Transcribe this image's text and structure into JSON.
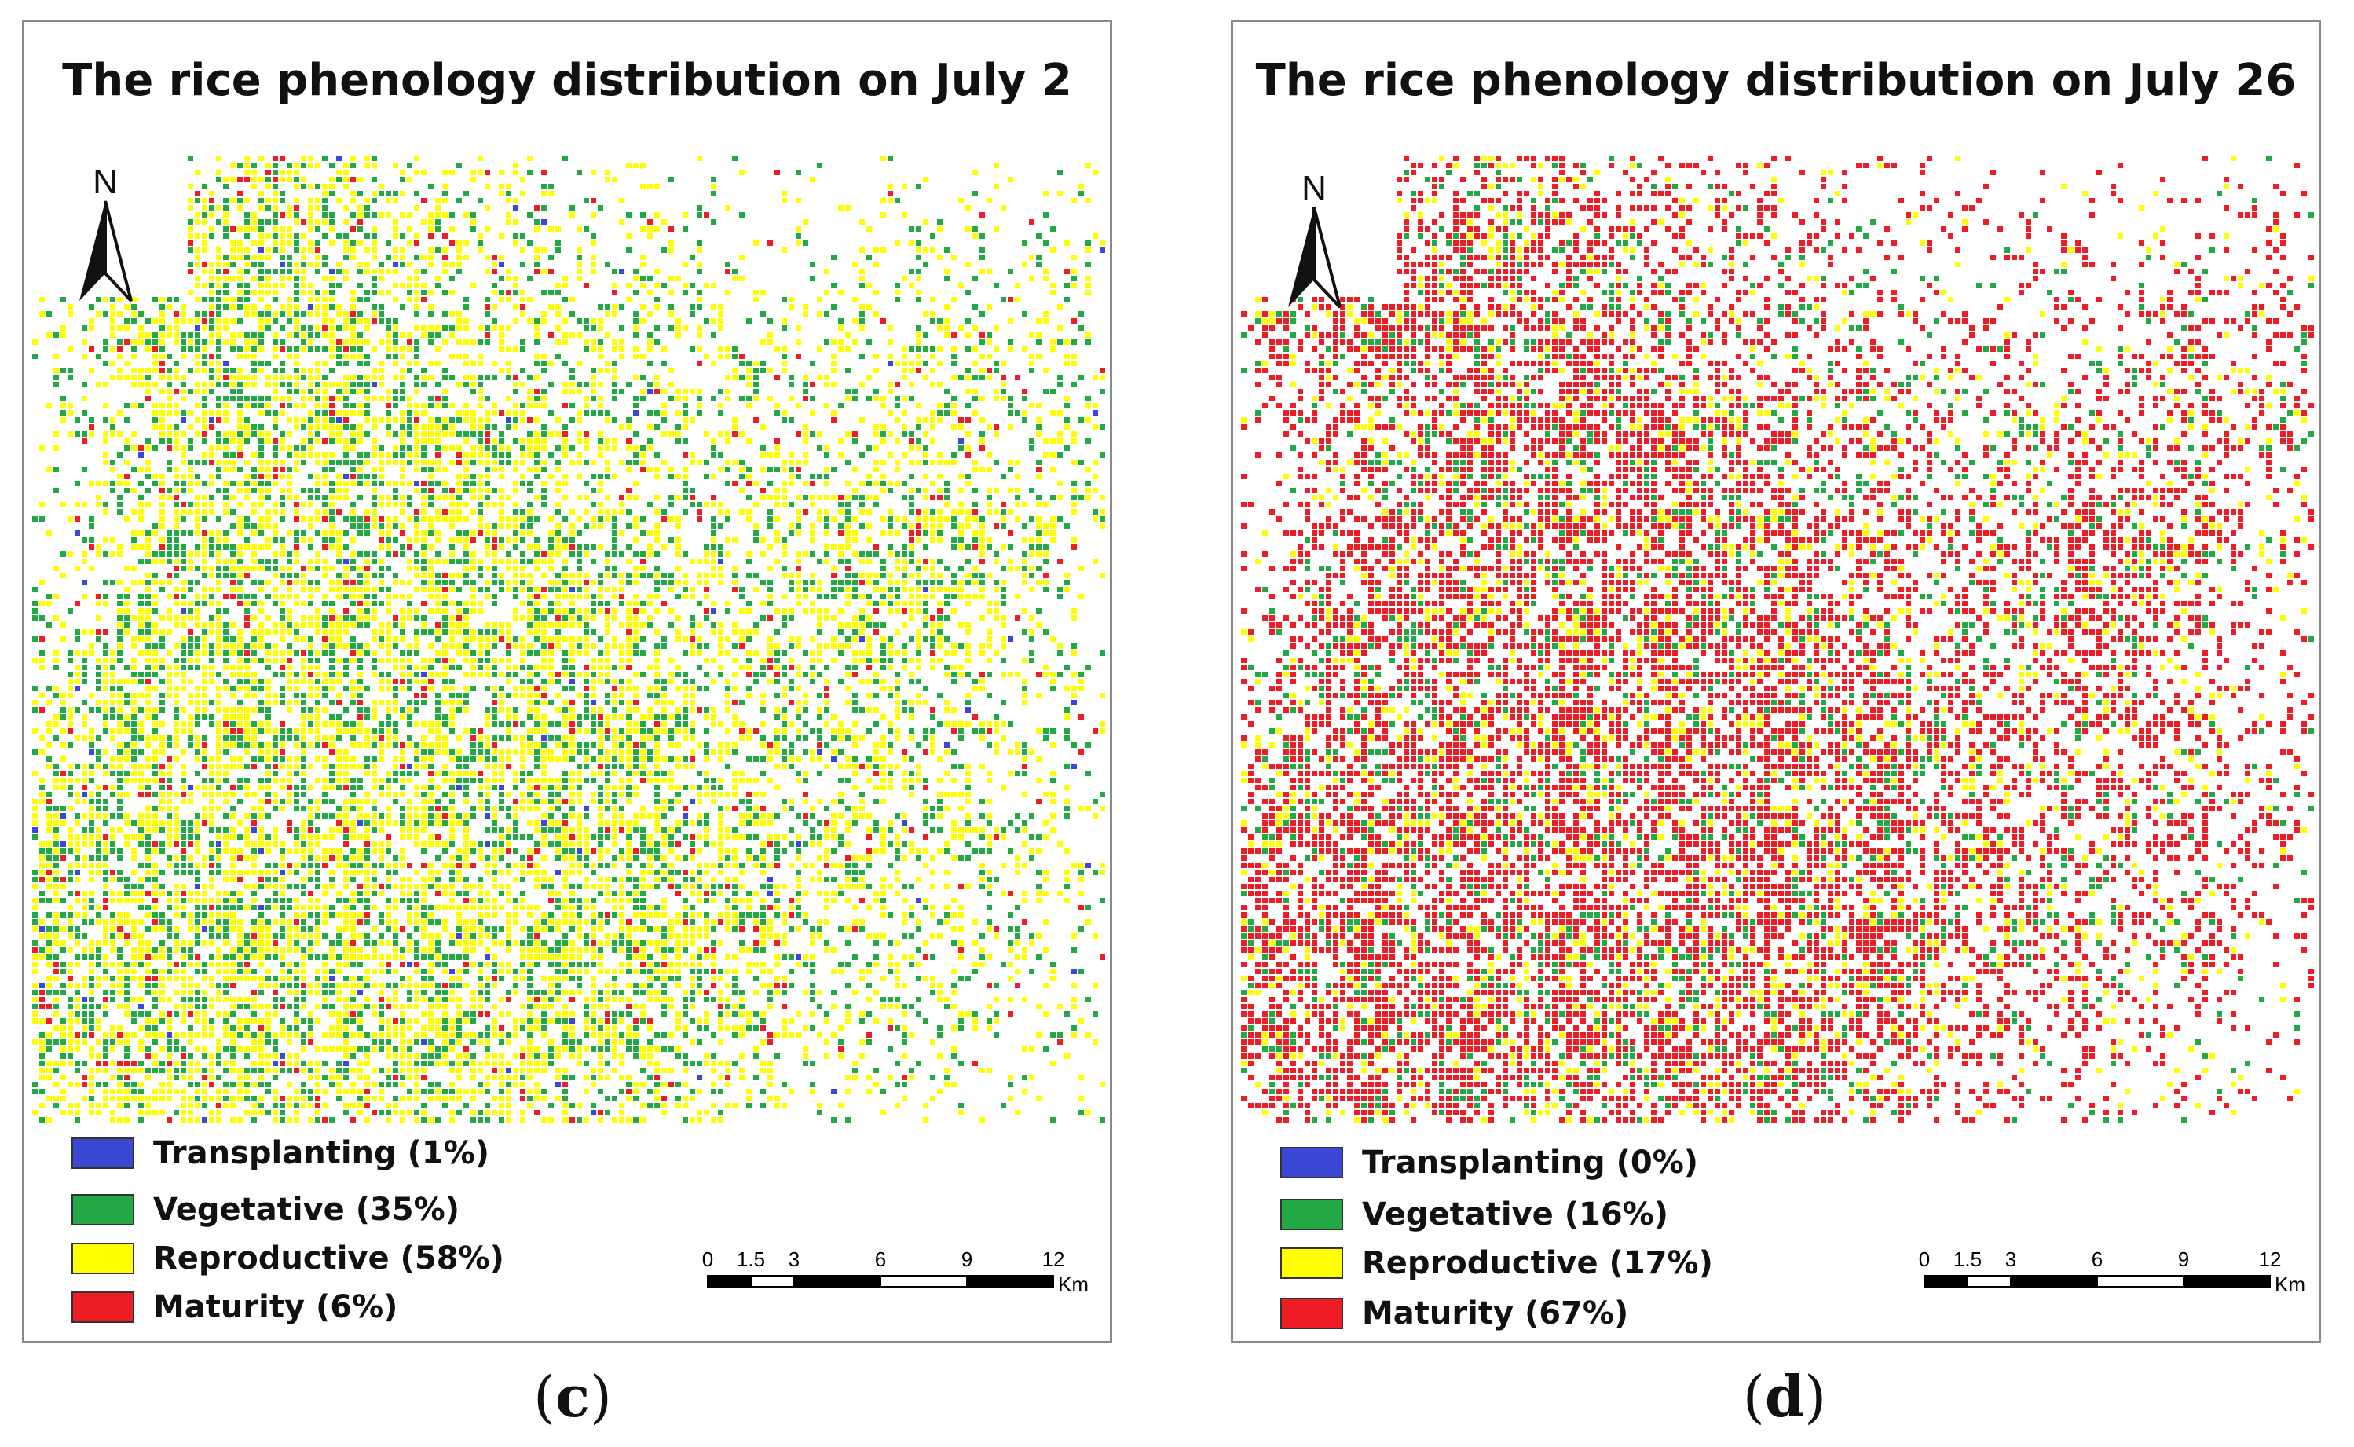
{
  "panels": [
    {
      "id": "c",
      "title": "The rice phenology distribution on July 2",
      "north_label": "N",
      "legend": [
        {
          "label": "Transplanting (1%)",
          "color": "#3b48d6"
        },
        {
          "label": "Vegetative (35%)",
          "color": "#22a844"
        },
        {
          "label": "Reproductive (58%)",
          "color": "#ffff00"
        },
        {
          "label": "Maturity (6%)",
          "color": "#ee1c24"
        }
      ],
      "class_shares": {
        "transplanting": 1,
        "vegetative": 35,
        "reproductive": 58,
        "maturity": 6
      },
      "caption": "(c)",
      "caption_letter": "c"
    },
    {
      "id": "d",
      "title": "The rice phenology distribution on July 26",
      "north_label": "N",
      "legend": [
        {
          "label": "Transplanting (0%)",
          "color": "#3b48d6"
        },
        {
          "label": "Vegetative (16%)",
          "color": "#22a844"
        },
        {
          "label": "Reproductive (17%)",
          "color": "#ffff00"
        },
        {
          "label": "Maturity (67%)",
          "color": "#ee1c24"
        }
      ],
      "class_shares": {
        "transplanting": 0,
        "vegetative": 16,
        "reproductive": 17,
        "maturity": 67
      },
      "caption": "(d)",
      "caption_letter": "d"
    }
  ],
  "scalebar": {
    "ticks": [
      "0",
      "1.5",
      "3",
      "6",
      "9",
      "12"
    ],
    "tick_values": [
      0,
      1.5,
      3,
      6,
      9,
      12
    ],
    "unit": "Km"
  }
}
